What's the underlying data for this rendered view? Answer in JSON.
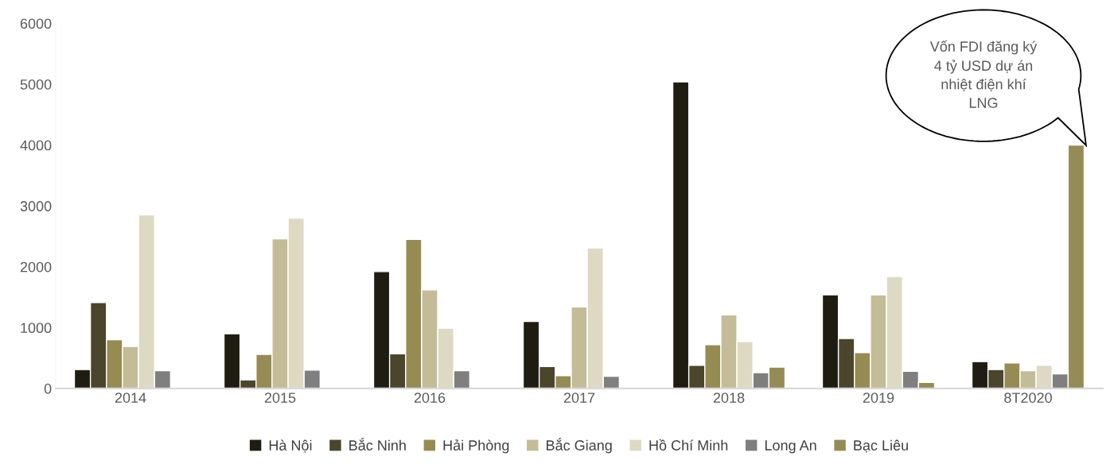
{
  "chart_data": {
    "type": "bar",
    "categories": [
      "2014",
      "2015",
      "2016",
      "2017",
      "2018",
      "2019",
      "8T2020"
    ],
    "series": [
      {
        "name": "Hà Nội",
        "color": "#1f1d12",
        "values": [
          310,
          900,
          1920,
          1100,
          5040,
          1540,
          440
        ]
      },
      {
        "name": "Bắc Ninh",
        "color": "#4a452b",
        "values": [
          1410,
          140,
          570,
          360,
          380,
          820,
          310
        ]
      },
      {
        "name": "Hải Phòng",
        "color": "#968b53",
        "values": [
          800,
          560,
          2450,
          210,
          720,
          590,
          420
        ]
      },
      {
        "name": "Bắc Giang",
        "color": "#c4bc96",
        "values": [
          690,
          2460,
          1620,
          1340,
          1210,
          1540,
          290
        ]
      },
      {
        "name": "Hồ Chí Minh",
        "color": "#ddd9c3",
        "values": [
          2850,
          2800,
          990,
          2310,
          770,
          1840,
          380
        ]
      },
      {
        "name": "Long An",
        "color": "#7f7f7f",
        "values": [
          290,
          300,
          290,
          200,
          260,
          280,
          240
        ]
      },
      {
        "name": "Bạc Liêu",
        "color": "#958b54",
        "values": [
          null,
          null,
          null,
          null,
          350,
          100,
          4000
        ]
      }
    ],
    "ylim": [
      0,
      6000
    ],
    "yticks": [
      0,
      1000,
      2000,
      3000,
      4000,
      5000,
      6000
    ],
    "grid": false,
    "legend": "bottom",
    "annotations": [
      "Vốn FDI đăng ký\n4 tỷ USD dự án\nnhiệt điện khí\nLNG"
    ]
  }
}
